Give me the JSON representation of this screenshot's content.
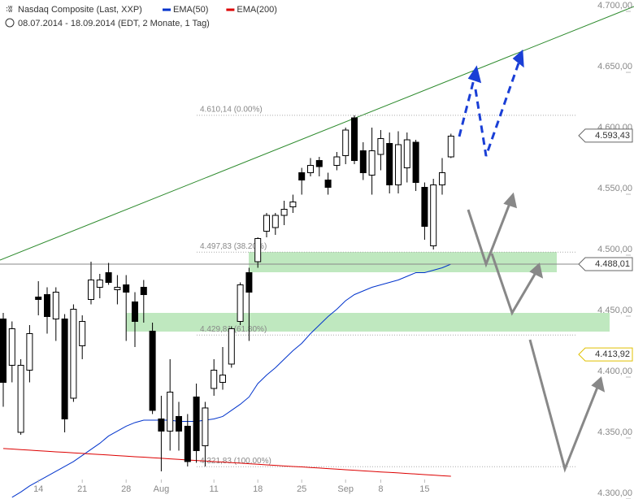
{
  "chart_data": {
    "type": "candlestick",
    "title": "Nasdaq Composite (Last, XXP)",
    "subtitle": "08.07.2014 - 18.09.2014 (EDT, 2 Monate, 1 Tag)",
    "categories": [
      null,
      null,
      null,
      null,
      "14",
      null,
      null,
      null,
      null,
      "21",
      null,
      null,
      null,
      null,
      "28",
      null,
      null,
      null,
      "Aug",
      null,
      null,
      null,
      null,
      null,
      "11",
      null,
      null,
      null,
      null,
      "18",
      null,
      null,
      null,
      null,
      "25",
      null,
      null,
      null,
      null,
      "Sep",
      null,
      null,
      null,
      "8",
      null,
      null,
      null,
      null,
      "15",
      null,
      null,
      null
    ],
    "open": [
      4443,
      4405,
      4350,
      4401,
      4461,
      4463,
      4443,
      4443,
      4378,
      4421,
      4459,
      4469,
      4481,
      4467,
      4471,
      4457,
      4469,
      4433,
      4361,
      4351,
      4363,
      4355,
      4379,
      4339,
      4386,
      4391,
      4406,
      4441,
      4481,
      4490,
      4515,
      4518,
      4528,
      4535,
      4563,
      4563,
      4573,
      4557,
      4569,
      4577,
      4608,
      4581,
      4561,
      4578,
      4587,
      4553,
      4567,
      4588,
      4551,
      4503,
      4553,
      4576
    ],
    "high": [
      4448,
      4441,
      4410,
      4438,
      4474,
      4469,
      4469,
      4447,
      4455,
      4446,
      4490,
      4480,
      4489,
      4479,
      4479,
      4465,
      4475,
      4440,
      4380,
      4410,
      4375,
      4365,
      4390,
      4375,
      4410,
      4420,
      4437,
      4473,
      4485,
      4510,
      4530,
      4530,
      4540,
      4545,
      4567,
      4575,
      4576,
      4563,
      4580,
      4600,
      4610.14,
      4588,
      4600,
      4598,
      4596,
      4597,
      4596,
      4590,
      4555,
      4558,
      4575,
      4595
    ],
    "low": [
      4371,
      4391,
      4348,
      4391,
      4446,
      4431,
      4425,
      4350,
      4375,
      4410,
      4455,
      4460,
      4471,
      4455,
      4425,
      4420,
      4440,
      4365,
      4318,
      4335,
      4335,
      4322,
      4325,
      4322,
      4380,
      4385,
      4403,
      4438,
      4425,
      4485,
      4510,
      4512,
      4520,
      4530,
      4545,
      4560,
      4560,
      4545,
      4565,
      4570,
      4570,
      4557,
      4545,
      4565,
      4546,
      4546,
      4555,
      4548,
      4508,
      4500,
      4545,
      4575
    ],
    "close": [
      4391,
      4435,
      4405,
      4431,
      4459,
      4445,
      4465,
      4361,
      4451,
      4441,
      4475,
      4475,
      4473,
      4469,
      4465,
      4441,
      4463,
      4368,
      4351,
      4383,
      4351,
      4326,
      4335,
      4370,
      4401,
      4397,
      4435,
      4471,
      4465,
      4509,
      4528,
      4528,
      4533,
      4539,
      4557,
      4569,
      4568,
      4551,
      4576,
      4598,
      4573,
      4563,
      4581,
      4591,
      4553,
      4586,
      4590,
      4555,
      4519,
      4553,
      4563,
      4593
    ],
    "series": [
      {
        "name": "EMA(50)",
        "color": "#0033cc",
        "values": [
          null,
          4296.7,
          4301,
          4306,
          4310,
          4314,
          4318,
          4322,
          4326,
          4331,
          4336,
          4341,
          4347,
          4351,
          4355,
          4358,
          4360,
          4360,
          4360,
          4360,
          4359,
          4359,
          4359,
          4360,
          4361,
          4363,
          4368,
          4373,
          4379,
          4390,
          4397,
          4403,
          4410,
          4417,
          4423,
          4431,
          4438,
          4445,
          4451,
          4458,
          4463,
          4466,
          4469,
          4471,
          4473,
          4475,
          4478,
          4481,
          4481,
          4483,
          4485,
          4488
        ]
      },
      {
        "name": "EMA(200)",
        "color": "#dd0000",
        "values": [
          4336.7,
          4336.3,
          4335.8,
          4335.4,
          4334.9,
          4334.5,
          4334.0,
          4333.6,
          4333.1,
          4332.7,
          4332.2,
          4331.8,
          4331.4,
          4330.9,
          4330.5,
          4330.0,
          4329.6,
          4329.1,
          4328.7,
          4328.2,
          4327.8,
          4327.3,
          4326.9,
          4326.5,
          4326.0,
          4325.6,
          4325.1,
          4324.7,
          4324.2,
          4323.8,
          4323.3,
          4322.9,
          4322.4,
          4322.0,
          4321.6,
          4321.1,
          4320.7,
          4320.2,
          4319.8,
          4319.3,
          4318.9,
          4318.4,
          4318.0,
          4317.5,
          4317.1,
          4316.7,
          4316.2,
          4315.8,
          4315.3,
          4314.9,
          4314.4,
          4314.0
        ]
      }
    ],
    "ylim": [
      4295.3,
      4704.7
    ],
    "yticks": [
      {
        "value": 4300,
        "label": "4.300,00"
      },
      {
        "value": 4350,
        "label": "4.350,00"
      },
      {
        "value": 4400,
        "label": "4.400,00"
      },
      {
        "value": 4450,
        "label": "4.450,00"
      },
      {
        "value": 4500,
        "label": "4.500,00"
      },
      {
        "value": 4550,
        "label": "4.550,00"
      },
      {
        "value": 4600,
        "label": "4.600,00"
      },
      {
        "value": 4650,
        "label": "4.650,00"
      },
      {
        "value": 4700,
        "label": "4.700,00"
      }
    ],
    "price_labels": [
      {
        "value": 4593.43,
        "label": "4.593,43"
      },
      {
        "value": 4488.01,
        "label": "4.488,01"
      },
      {
        "value": 4413.92,
        "label": "4.413,92"
      }
    ],
    "fib_levels": [
      {
        "value": 4610.14,
        "label": "4.610,14 (0.00%)"
      },
      {
        "value": 4497.83,
        "label": "4.497,83 (38.20%)"
      },
      {
        "value": 4429.81,
        "label": "4.429,81 (61.80%)"
      },
      {
        "value": 4321.83,
        "label": "4.321,83 (100.00%)"
      }
    ]
  }
}
